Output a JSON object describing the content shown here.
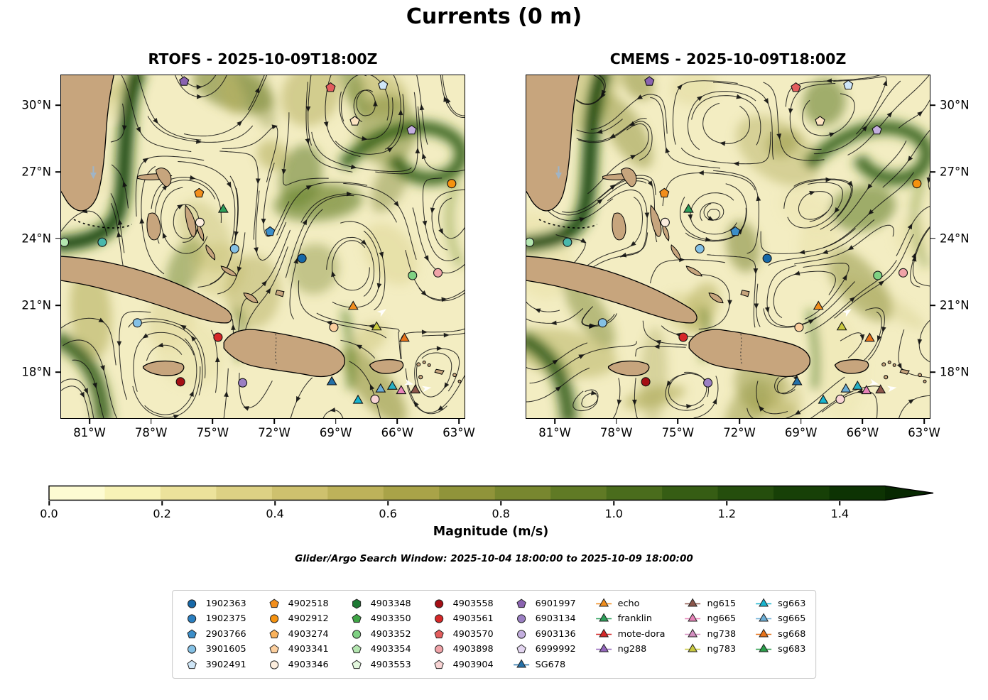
{
  "figure": {
    "title": "Currents (0 m)"
  },
  "panels": [
    {
      "id": "rtofs",
      "title": "RTOFS - 2025-10-09T18:00Z",
      "yticks_side": "left"
    },
    {
      "id": "cmems",
      "title": "CMEMS - 2025-10-09T18:00Z",
      "yticks_side": "right"
    }
  ],
  "axes": {
    "lon_ticks": [
      "81°W",
      "78°W",
      "75°W",
      "72°W",
      "69°W",
      "66°W",
      "63°W"
    ],
    "lat_ticks": [
      "30°N",
      "27°N",
      "24°N",
      "21°N",
      "18°N"
    ]
  },
  "colorbar": {
    "label": "Magnitude (m/s)",
    "ticks": [
      "0.0",
      "0.2",
      "0.4",
      "0.6",
      "0.8",
      "1.0",
      "1.2",
      "1.4"
    ],
    "colors": [
      "#fdfbd2",
      "#f7f2b6",
      "#ece29b",
      "#ddd184",
      "#cec16e",
      "#bdb25a",
      "#a9a348",
      "#90943a",
      "#78872f",
      "#607a25",
      "#4a6c1c",
      "#365d14",
      "#254e0d",
      "#174007",
      "#0d3303"
    ],
    "arrow_color": "#072801"
  },
  "search_window": "Glider/Argo Search Window: 2025-10-04 18:00:00 to 2025-10-09 18:00:00",
  "legend": {
    "columns": [
      {
        "entries": [
          {
            "label": "1902363",
            "shape": "circle",
            "color": "#1668a8"
          },
          {
            "label": "1902375",
            "shape": "circle",
            "color": "#2a7fc1"
          },
          {
            "label": "2903766",
            "shape": "pentagon",
            "color": "#3c8ec9"
          },
          {
            "label": "3901605",
            "shape": "circle",
            "color": "#85c1e5"
          },
          {
            "label": "3902491",
            "shape": "pentagon",
            "color": "#cfe6f7"
          }
        ]
      },
      {
        "entries": [
          {
            "label": "4902518",
            "shape": "pentagon",
            "color": "#f28e1c"
          },
          {
            "label": "4902912",
            "shape": "circle",
            "color": "#f5920f"
          },
          {
            "label": "4903274",
            "shape": "pentagon",
            "color": "#f9b25c"
          },
          {
            "label": "4903341",
            "shape": "pentagon",
            "color": "#fccf9e"
          },
          {
            "label": "4903346",
            "shape": "circle",
            "color": "#fdeede"
          }
        ]
      },
      {
        "entries": [
          {
            "label": "4903348",
            "shape": "hexagon",
            "color": "#1e7a34"
          },
          {
            "label": "4903350",
            "shape": "pentagon",
            "color": "#3fa546"
          },
          {
            "label": "4903352",
            "shape": "circle",
            "color": "#7fd183"
          },
          {
            "label": "4903354",
            "shape": "pentagon",
            "color": "#b4e6b0"
          },
          {
            "label": "4903553",
            "shape": "pentagon",
            "color": "#e2f6dd"
          }
        ]
      },
      {
        "entries": [
          {
            "label": "4903558",
            "shape": "circle",
            "color": "#a50f15"
          },
          {
            "label": "4903561",
            "shape": "circle",
            "color": "#d62728"
          },
          {
            "label": "4903570",
            "shape": "pentagon",
            "color": "#e35d5d"
          },
          {
            "label": "4903898",
            "shape": "circle",
            "color": "#f0a3a8"
          },
          {
            "label": "4903904",
            "shape": "pentagon",
            "color": "#f8d4d4"
          }
        ]
      },
      {
        "entries": [
          {
            "label": "6901997",
            "shape": "pentagon",
            "color": "#8a63b0"
          },
          {
            "label": "6903134",
            "shape": "circle",
            "color": "#9b7fc3"
          },
          {
            "label": "6903136",
            "shape": "circle",
            "color": "#c3aede"
          },
          {
            "label": "6999992",
            "shape": "pentagon",
            "color": "#e3d5f0"
          },
          {
            "label": "SG678",
            "shape": "triangle",
            "color": "#2470a8"
          }
        ]
      },
      {
        "entries": [
          {
            "label": "echo",
            "shape": "triangle",
            "color": "#f28e1c"
          },
          {
            "label": "franklin",
            "shape": "triangle",
            "color": "#2ca05a"
          },
          {
            "label": "mote-dora",
            "shape": "triangle",
            "color": "#d62728"
          },
          {
            "label": "ng288",
            "shape": "triangle",
            "color": "#9467bd"
          }
        ]
      },
      {
        "entries": [
          {
            "label": "ng615",
            "shape": "triangle",
            "color": "#8c564b"
          },
          {
            "label": "ng665",
            "shape": "triangle",
            "color": "#e783b8"
          },
          {
            "label": "ng738",
            "shape": "triangle",
            "color": "#d48ec0"
          },
          {
            "label": "ng783",
            "shape": "triangle",
            "color": "#c9c93e"
          }
        ]
      },
      {
        "entries": [
          {
            "label": "sg663",
            "shape": "triangle",
            "color": "#18b5cf"
          },
          {
            "label": "sg665",
            "shape": "triangle",
            "color": "#6baed6"
          },
          {
            "label": "sg668",
            "shape": "triangle",
            "color": "#e8731a"
          },
          {
            "label": "sg683",
            "shape": "triangle",
            "color": "#2a9e4a"
          }
        ]
      }
    ]
  },
  "markers": [
    {
      "shape": "pentagon",
      "color": "#8a63b0",
      "x": 30.5,
      "y": 1.8
    },
    {
      "shape": "pentagon",
      "color": "#e35d5d",
      "x": 66.8,
      "y": 3.6
    },
    {
      "shape": "pentagon",
      "color": "#cfe6f7",
      "x": 79.8,
      "y": 2.9
    },
    {
      "shape": "pentagon",
      "color": "#fce3c0",
      "x": 72.8,
      "y": 13.4
    },
    {
      "shape": "pentagon",
      "color": "#c3aede",
      "x": 86.9,
      "y": 16.0
    },
    {
      "shape": "circle",
      "color": "#f5920f",
      "x": 96.8,
      "y": 31.6
    },
    {
      "shape": "pentagon",
      "color": "#f28e1c",
      "x": 34.2,
      "y": 34.4
    },
    {
      "shape": "triangle",
      "color": "#2ca05a",
      "x": 40.2,
      "y": 39.2
    },
    {
      "shape": "circle",
      "color": "#fdeede",
      "x": 34.4,
      "y": 42.9
    },
    {
      "shape": "pentagon",
      "color": "#3c8ec9",
      "x": 51.8,
      "y": 45.6
    },
    {
      "shape": "circle",
      "color": "#49b8ac",
      "x": 10.2,
      "y": 48.7
    },
    {
      "shape": "circle",
      "color": "#b4e6b0",
      "x": 0.8,
      "y": 48.7
    },
    {
      "shape": "circle",
      "color": "#85c1e5",
      "x": 43.0,
      "y": 50.6
    },
    {
      "shape": "circle",
      "color": "#1668a8",
      "x": 59.7,
      "y": 53.4
    },
    {
      "shape": "circle",
      "color": "#7fd183",
      "x": 87.1,
      "y": 58.4
    },
    {
      "shape": "circle",
      "color": "#f0a3a8",
      "x": 93.4,
      "y": 57.6
    },
    {
      "shape": "triangle",
      "color": "#f28e1c",
      "x": 72.4,
      "y": 67.5
    },
    {
      "shape": "circle",
      "color": "#fccf9e",
      "x": 67.6,
      "y": 73.5
    },
    {
      "shape": "triangle",
      "color": "#c9c93e",
      "x": 78.2,
      "y": 73.5
    },
    {
      "shape": "triangle",
      "color": "#e8731a",
      "x": 85.1,
      "y": 76.8
    },
    {
      "shape": "circle",
      "color": "#85c1e5",
      "x": 18.9,
      "y": 72.2
    },
    {
      "shape": "circle",
      "color": "#d62728",
      "x": 38.9,
      "y": 76.4
    },
    {
      "shape": "circle",
      "color": "#a50f15",
      "x": 29.6,
      "y": 89.4
    },
    {
      "shape": "circle",
      "color": "#9b7fc3",
      "x": 45.0,
      "y": 89.7
    },
    {
      "shape": "triangle",
      "color": "#2470a8",
      "x": 67.1,
      "y": 89.5
    },
    {
      "shape": "triangle",
      "color": "#18b5cf",
      "x": 73.6,
      "y": 94.9
    },
    {
      "shape": "circle",
      "color": "#f8d4d4",
      "x": 77.8,
      "y": 94.5
    },
    {
      "shape": "triangle",
      "color": "#6baed6",
      "x": 79.2,
      "y": 91.6
    },
    {
      "shape": "triangle",
      "color": "#27b0c4",
      "x": 82.1,
      "y": 90.8
    },
    {
      "shape": "triangle",
      "color": "#e783b8",
      "x": 84.3,
      "y": 92.1
    },
    {
      "shape": "triangle",
      "color": "#8c564b",
      "x": 87.8,
      "y": 91.9
    },
    {
      "shape": "arrow",
      "color": "#ffffff",
      "x": 79.6,
      "y": 69.0,
      "rot": -35
    },
    {
      "shape": "arrow",
      "color": "#ffffff",
      "x": 86.2,
      "y": 89.8,
      "rot": 15
    },
    {
      "shape": "arrow",
      "color": "#ffffff",
      "x": 90.6,
      "y": 91.3,
      "rot": -10
    },
    {
      "shape": "arrow-down",
      "color": "#9fb4c6",
      "x": 8.0,
      "y": 28.4
    }
  ]
}
